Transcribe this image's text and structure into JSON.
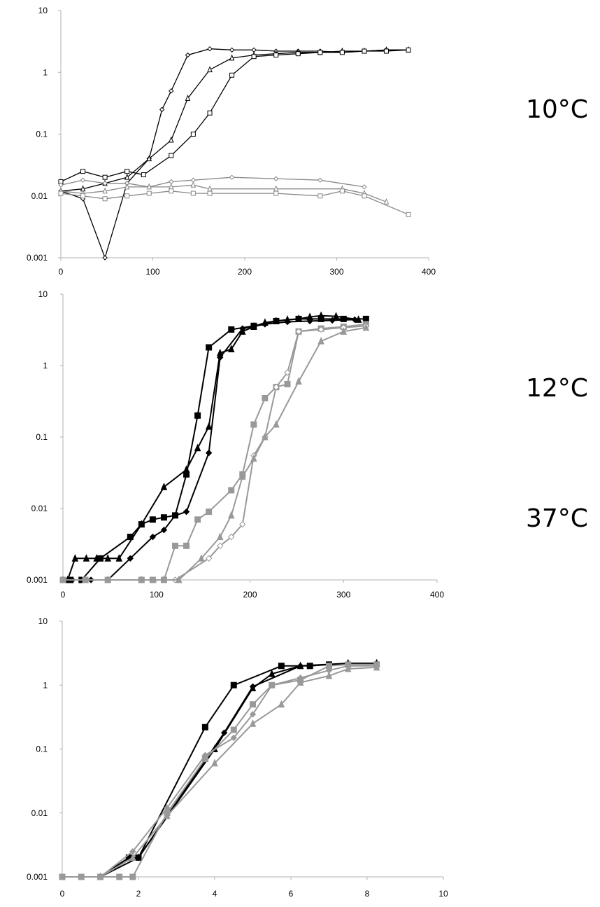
{
  "chart_data": [
    {
      "type": "line",
      "title": "",
      "annotation": "10°C",
      "xlabel": "",
      "ylabel": "",
      "xlim": [
        0,
        400
      ],
      "ylim": [
        0.001,
        10
      ],
      "yscale": "log",
      "grid": false,
      "x_ticks": [
        "0",
        "100",
        "200",
        "300",
        "400"
      ],
      "y_ticks": [
        "0.001",
        "0.01",
        "0.1",
        "1",
        "10"
      ],
      "series": [
        {
          "color": "#000000",
          "marker": "diamond",
          "x": [
            0,
            24,
            48,
            72,
            96,
            110,
            120,
            138,
            162,
            186,
            210,
            234,
            258,
            282,
            306,
            330,
            354,
            378
          ],
          "y": [
            0.012,
            0.009,
            0.001,
            0.016,
            0.04,
            0.25,
            0.5,
            1.9,
            2.4,
            2.3,
            2.3,
            2.2,
            2.2,
            2.2,
            2.1,
            2.2,
            2.3,
            2.3
          ]
        },
        {
          "color": "#000000",
          "marker": "triangle",
          "x": [
            0,
            24,
            48,
            72,
            96,
            120,
            138,
            162,
            186,
            210,
            234,
            258,
            282,
            306,
            330,
            354,
            378
          ],
          "y": [
            0.012,
            0.013,
            0.016,
            0.02,
            0.04,
            0.08,
            0.38,
            1.1,
            1.7,
            1.9,
            2.0,
            2.1,
            2.1,
            2.2,
            2.2,
            2.3,
            2.3
          ]
        },
        {
          "color": "#000000",
          "marker": "square",
          "x": [
            0,
            24,
            48,
            72,
            90,
            120,
            144,
            162,
            186,
            210,
            234,
            258,
            282,
            306,
            330,
            354,
            378
          ],
          "y": [
            0.017,
            0.025,
            0.02,
            0.025,
            0.022,
            0.045,
            0.1,
            0.22,
            0.9,
            1.8,
            1.9,
            2.0,
            2.1,
            2.1,
            2.2,
            2.2,
            2.3
          ]
        },
        {
          "color": "#888888",
          "marker": "diamond",
          "x": [
            0,
            24,
            48,
            72,
            96,
            120,
            144,
            186,
            234,
            282,
            330
          ],
          "y": [
            0.015,
            0.018,
            0.016,
            0.016,
            0.014,
            0.017,
            0.018,
            0.02,
            0.019,
            0.018,
            0.014
          ]
        },
        {
          "color": "#888888",
          "marker": "triangle",
          "x": [
            0,
            24,
            48,
            72,
            96,
            120,
            144,
            162,
            234,
            306,
            330,
            354
          ],
          "y": [
            0.012,
            0.011,
            0.012,
            0.014,
            0.014,
            0.014,
            0.015,
            0.013,
            0.013,
            0.013,
            0.011,
            0.008
          ]
        },
        {
          "color": "#888888",
          "marker": "square",
          "x": [
            0,
            24,
            48,
            72,
            96,
            120,
            144,
            162,
            234,
            282,
            306,
            330,
            378
          ],
          "y": [
            0.011,
            0.01,
            0.009,
            0.01,
            0.011,
            0.012,
            0.011,
            0.011,
            0.011,
            0.01,
            0.012,
            0.01,
            0.005
          ]
        }
      ]
    },
    {
      "type": "line",
      "title": "",
      "annotation": "12°C",
      "xlabel": "",
      "ylabel": "",
      "xlim": [
        0,
        400
      ],
      "ylim": [
        0.001,
        10
      ],
      "yscale": "log",
      "grid": false,
      "x_ticks": [
        "0",
        "100",
        "200",
        "300",
        "400"
      ],
      "y_ticks": [
        "0.001",
        "0.01",
        "0.1",
        "1",
        "10"
      ],
      "series": [
        {
          "color": "#000000",
          "marker": "triangle",
          "x": [
            0,
            5,
            13,
            25,
            36,
            48,
            60,
            84,
            108,
            132,
            144,
            156,
            168,
            180,
            192,
            204,
            216,
            228,
            240,
            252,
            264,
            276,
            292,
            316
          ],
          "y": [
            0.001,
            0.001,
            0.002,
            0.002,
            0.002,
            0.002,
            0.002,
            0.006,
            0.02,
            0.035,
            0.07,
            0.14,
            1.5,
            1.7,
            3.0,
            3.5,
            4.0,
            4.2,
            4.4,
            4.5,
            4.8,
            5.0,
            4.9,
            4.4
          ]
        },
        {
          "color": "#000000",
          "marker": "square",
          "x": [
            0,
            8,
            20,
            40,
            72,
            84,
            96,
            108,
            120,
            132,
            144,
            156,
            180,
            204,
            228,
            252,
            276,
            300,
            324
          ],
          "y": [
            0.001,
            0.001,
            0.001,
            0.002,
            0.004,
            0.006,
            0.007,
            0.0075,
            0.008,
            0.03,
            0.2,
            1.8,
            3.2,
            3.6,
            4.2,
            4.5,
            4.5,
            4.5,
            4.5
          ]
        },
        {
          "color": "#000000",
          "marker": "diamond",
          "x": [
            0,
            10,
            30,
            48,
            72,
            96,
            108,
            120,
            132,
            156,
            168,
            192,
            216,
            240,
            264,
            288,
            312
          ],
          "y": [
            0.001,
            0.001,
            0.001,
            0.001,
            0.002,
            0.004,
            0.005,
            0.008,
            0.009,
            0.06,
            1.3,
            3.3,
            3.8,
            4.1,
            4.2,
            4.3,
            4.4
          ]
        },
        {
          "color": "#999999",
          "marker": "square",
          "x": [
            0,
            24,
            48,
            84,
            96,
            108,
            120,
            132,
            144,
            156,
            180,
            192,
            204,
            216,
            228,
            240,
            252,
            276,
            300,
            324
          ],
          "y": [
            0.001,
            0.001,
            0.001,
            0.001,
            0.001,
            0.001,
            0.003,
            0.003,
            0.007,
            0.009,
            0.018,
            0.03,
            0.15,
            0.35,
            0.5,
            0.55,
            3.0,
            3.3,
            3.5,
            3.8
          ]
        },
        {
          "color": "#999999",
          "marker": "diamond",
          "x": [
            0,
            24,
            48,
            84,
            108,
            120,
            156,
            168,
            180,
            192,
            204,
            216,
            228,
            240,
            252,
            276,
            300,
            324
          ],
          "y": [
            0.001,
            0.001,
            0.001,
            0.001,
            0.001,
            0.001,
            0.002,
            0.003,
            0.004,
            0.006,
            0.055,
            0.1,
            0.5,
            0.8,
            3.0,
            3.2,
            3.4,
            3.6
          ]
        },
        {
          "color": "#999999",
          "marker": "triangle",
          "x": [
            0,
            24,
            48,
            84,
            108,
            124,
            148,
            168,
            180,
            192,
            204,
            216,
            228,
            252,
            276,
            300,
            324
          ],
          "y": [
            0.001,
            0.001,
            0.001,
            0.001,
            0.001,
            0.001,
            0.002,
            0.004,
            0.008,
            0.028,
            0.05,
            0.1,
            0.15,
            0.6,
            2.2,
            3.0,
            3.4
          ]
        }
      ]
    },
    {
      "type": "line",
      "title": "",
      "annotation": "37°C",
      "xlabel": "",
      "ylabel": "",
      "xlim": [
        0,
        10
      ],
      "ylim": [
        0.001,
        10
      ],
      "yscale": "log",
      "grid": false,
      "x_ticks": [
        "0",
        "2",
        "4",
        "6",
        "8",
        "10"
      ],
      "y_ticks": [
        "0.001",
        "0.01",
        "0.1",
        "1",
        "10"
      ],
      "series": [
        {
          "color": "#000000",
          "marker": "square",
          "x": [
            1.0,
            1.75,
            2.0,
            3.75,
            4.5,
            5.75,
            6.5,
            7.0
          ],
          "y": [
            0.001,
            0.002,
            0.002,
            0.22,
            1.0,
            2.0,
            2.0,
            2.1
          ]
        },
        {
          "color": "#000000",
          "marker": "triangle",
          "x": [
            1.0,
            1.75,
            2.0,
            4.0,
            5.0,
            5.5,
            6.25,
            7.5,
            8.25
          ],
          "y": [
            0.001,
            0.002,
            0.002,
            0.1,
            0.9,
            1.5,
            2.0,
            2.2,
            2.2
          ]
        },
        {
          "color": "#000000",
          "marker": "diamond",
          "x": [
            1.0,
            2.0,
            4.25,
            5.0,
            6.25,
            7.0,
            8.25
          ],
          "y": [
            0.001,
            0.002,
            0.18,
            0.95,
            2.0,
            2.1,
            2.2
          ]
        },
        {
          "color": "#999999",
          "marker": "square",
          "x": [
            0,
            0.5,
            1.0,
            1.5,
            1.85,
            2.75,
            3.75,
            4.5,
            5.0,
            5.5,
            6.25,
            7.0,
            7.5,
            8.25
          ],
          "y": [
            0.001,
            0.001,
            0.001,
            0.001,
            0.001,
            0.01,
            0.07,
            0.2,
            0.5,
            1.0,
            1.2,
            2.0,
            2.1,
            2.1
          ]
        },
        {
          "color": "#999999",
          "marker": "diamond",
          "x": [
            1.0,
            1.85,
            2.75,
            3.75,
            4.5,
            5.0,
            5.5,
            6.25,
            7.0,
            7.5,
            8.25
          ],
          "y": [
            0.001,
            0.0025,
            0.012,
            0.08,
            0.15,
            0.35,
            1.0,
            1.3,
            1.7,
            2.0,
            2.0
          ]
        },
        {
          "color": "#999999",
          "marker": "triangle",
          "x": [
            1.0,
            1.85,
            2.75,
            4.0,
            5.0,
            5.75,
            6.25,
            7.0,
            7.5,
            8.25
          ],
          "y": [
            0.001,
            0.002,
            0.009,
            0.06,
            0.25,
            0.5,
            1.1,
            1.4,
            1.8,
            1.9
          ]
        }
      ]
    }
  ]
}
